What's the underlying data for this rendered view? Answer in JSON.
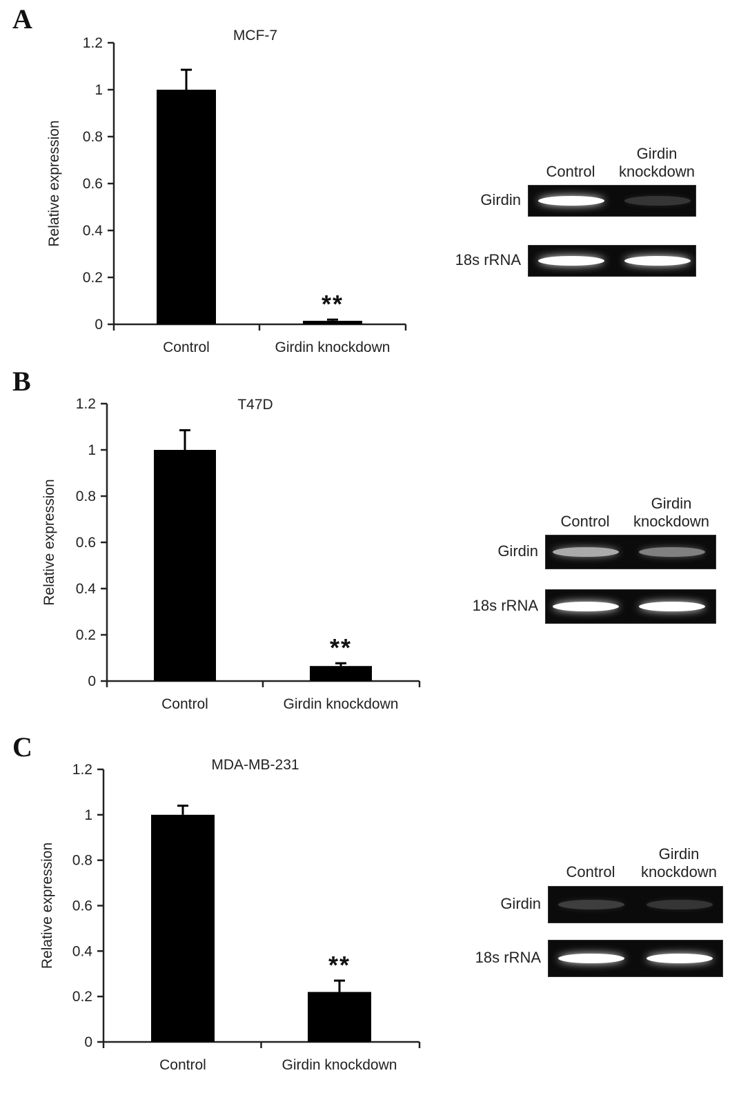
{
  "chart_data": [
    {
      "type": "bar",
      "panel": "A",
      "title": "MCF-7",
      "ylabel": "Relative expression",
      "categories": [
        "Control",
        "Girdin knockdown"
      ],
      "values": [
        1.0,
        0.015
      ],
      "errors": [
        0.085,
        0.005
      ],
      "ylim": [
        0,
        1.2
      ],
      "yticks": [
        "0",
        "0.2",
        "0.4",
        "0.6",
        "0.8",
        "1",
        "1.2"
      ],
      "significance": [
        "",
        "**"
      ],
      "gel": {
        "lanes": [
          "Control",
          "Girdin knockdown"
        ],
        "lane_label_lines": [
          [
            "Control"
          ],
          [
            "Girdin",
            "knockdown"
          ]
        ],
        "rows": [
          {
            "label": "Girdin",
            "intensity": [
              1.0,
              0.25
            ]
          },
          {
            "label": "18s rRNA",
            "intensity": [
              1.0,
              1.0
            ]
          }
        ]
      }
    },
    {
      "type": "bar",
      "panel": "B",
      "title": "T47D",
      "ylabel": "Relative expression",
      "categories": [
        "Control",
        "Girdin knockdown"
      ],
      "values": [
        1.0,
        0.065
      ],
      "errors": [
        0.085,
        0.012
      ],
      "ylim": [
        0,
        1.2
      ],
      "yticks": [
        "0",
        "0.2",
        "0.4",
        "0.6",
        "0.8",
        "1",
        "1.2"
      ],
      "significance": [
        "",
        "**"
      ],
      "gel": {
        "lanes": [
          "Control",
          "Girdin knockdown"
        ],
        "lane_label_lines": [
          [
            "Control"
          ],
          [
            "Girdin",
            "knockdown"
          ]
        ],
        "rows": [
          {
            "label": "Girdin",
            "intensity": [
              0.75,
              0.6
            ]
          },
          {
            "label": "18s rRNA",
            "intensity": [
              1.0,
              1.0
            ]
          }
        ]
      }
    },
    {
      "type": "bar",
      "panel": "C",
      "title": "MDA-MB-231",
      "ylabel": "Relative expression",
      "categories": [
        "Control",
        "Girdin knockdown"
      ],
      "values": [
        1.0,
        0.22
      ],
      "errors": [
        0.04,
        0.05
      ],
      "ylim": [
        0,
        1.2
      ],
      "yticks": [
        "0",
        "0.2",
        "0.4",
        "0.6",
        "0.8",
        "1",
        "1.2"
      ],
      "significance": [
        "",
        "**"
      ],
      "gel": {
        "lanes": [
          "Control",
          "Girdin knockdown"
        ],
        "lane_label_lines": [
          [
            "Control"
          ],
          [
            "Girdin",
            "knockdown"
          ]
        ],
        "rows": [
          {
            "label": "Girdin",
            "intensity": [
              0.3,
              0.25
            ]
          },
          {
            "label": "18s rRNA",
            "intensity": [
              1.0,
              1.0
            ]
          }
        ]
      }
    }
  ]
}
